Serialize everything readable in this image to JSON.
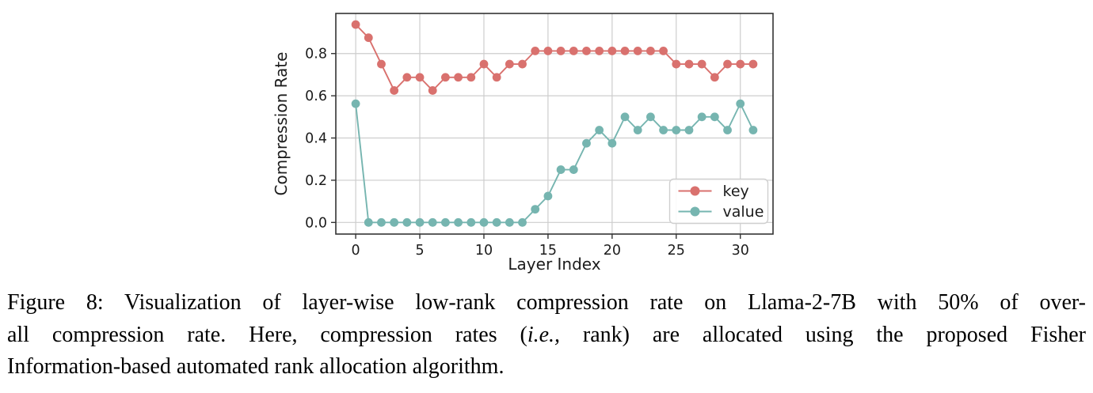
{
  "caption": {
    "line1": "Figure 8: Visualization of layer-wise low-rank compression rate on Llama-2-7B with 50% of over-",
    "line2_pre": "all compression rate.  Here, compression rates (",
    "line2_italic": "i.e.,",
    "line2_post": " rank) are allocated using the proposed Fisher",
    "line3": "Information-based automated rank allocation algorithm."
  },
  "chart_data": {
    "type": "line",
    "title": "",
    "xlabel": "Layer Index",
    "ylabel": "Compression Rate",
    "x": [
      0,
      1,
      2,
      3,
      4,
      5,
      6,
      7,
      8,
      9,
      10,
      11,
      12,
      13,
      14,
      15,
      16,
      17,
      18,
      19,
      20,
      21,
      22,
      23,
      24,
      25,
      26,
      27,
      28,
      29,
      30,
      31
    ],
    "series": [
      {
        "name": "key",
        "color": "#d9716e",
        "marker": "circle",
        "values": [
          0.9375,
          0.875,
          0.75,
          0.625,
          0.6875,
          0.6875,
          0.625,
          0.6875,
          0.6875,
          0.6875,
          0.75,
          0.6875,
          0.75,
          0.75,
          0.8125,
          0.8125,
          0.8125,
          0.8125,
          0.8125,
          0.8125,
          0.8125,
          0.8125,
          0.8125,
          0.8125,
          0.8125,
          0.75,
          0.75,
          0.75,
          0.6875,
          0.75,
          0.75,
          0.75
        ]
      },
      {
        "name": "value",
        "color": "#76b5b0",
        "marker": "circle",
        "values": [
          0.5625,
          0,
          0,
          0,
          0,
          0,
          0,
          0,
          0,
          0,
          0,
          0,
          0,
          0,
          0.0625,
          0.125,
          0.25,
          0.25,
          0.375,
          0.4375,
          0.375,
          0.5,
          0.4375,
          0.5,
          0.4375,
          0.4375,
          0.4375,
          0.5,
          0.5,
          0.4375,
          0.5625,
          0.4375
        ]
      }
    ],
    "xticks": [
      0,
      5,
      10,
      15,
      20,
      25,
      30
    ],
    "yticks": [
      0,
      0.2,
      0.4,
      0.6,
      0.8
    ],
    "ytick_labels": [
      "0.0",
      "0.2",
      "0.4",
      "0.6",
      "0.8"
    ],
    "xlim": [
      -1.55,
      32.55
    ],
    "ylim": [
      -0.055,
      0.99
    ],
    "grid": true,
    "grid_color": "#cdcdcd",
    "spine_color": "#333333",
    "legend_position": "lower right"
  }
}
